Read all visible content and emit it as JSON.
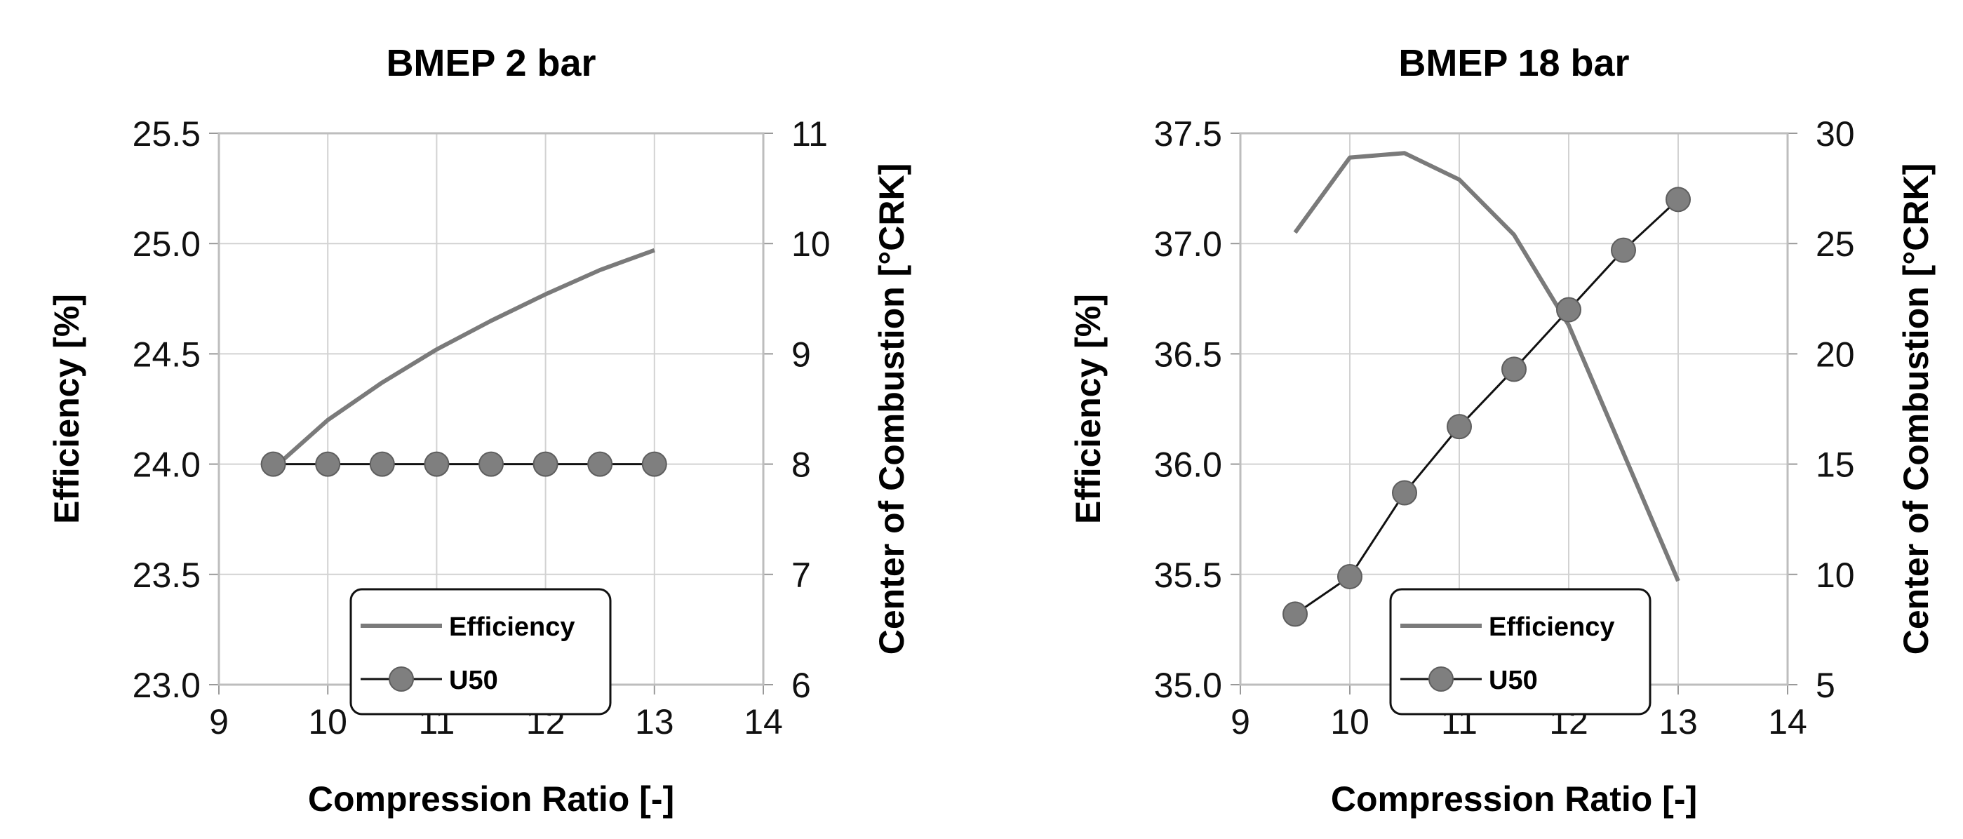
{
  "chart_data": [
    {
      "type": "line",
      "title": "BMEP 2 bar",
      "xlabel": "Compression Ratio [-]",
      "ylabel": "Efficiency [%]",
      "y2label": "Center of Combustion [°CRK]",
      "xlim": [
        9,
        14
      ],
      "xticks": [
        "9",
        "10",
        "11",
        "12",
        "13",
        "14"
      ],
      "ylim": [
        23.0,
        25.5
      ],
      "yticks": [
        "23.0",
        "23.5",
        "24.0",
        "24.5",
        "25.0",
        "25.5"
      ],
      "y2lim": [
        6,
        11
      ],
      "y2ticks": [
        "6",
        "7",
        "8",
        "9",
        "10",
        "11"
      ],
      "legend": [
        "Efficiency",
        "U50"
      ],
      "series": [
        {
          "name": "Efficiency",
          "axis": "left",
          "x": [
            9.5,
            10,
            10.5,
            11,
            11.5,
            12,
            12.5,
            13
          ],
          "values": [
            23.98,
            24.2,
            24.37,
            24.52,
            24.65,
            24.77,
            24.88,
            24.97
          ]
        },
        {
          "name": "U50",
          "axis": "right",
          "x": [
            9.5,
            10,
            10.5,
            11,
            11.5,
            12,
            12.5,
            13
          ],
          "values": [
            8,
            8,
            8,
            8,
            8,
            8,
            8,
            8
          ]
        }
      ]
    },
    {
      "type": "line",
      "title": "BMEP 18 bar",
      "xlabel": "Compression Ratio [-]",
      "ylabel": "Efficiency [%]",
      "y2label": "Center of Combustion [°CRK]",
      "xlim": [
        9,
        14
      ],
      "xticks": [
        "9",
        "10",
        "11",
        "12",
        "13",
        "14"
      ],
      "ylim": [
        35.0,
        37.5
      ],
      "yticks": [
        "35.0",
        "35.5",
        "36.0",
        "36.5",
        "37.0",
        "37.5"
      ],
      "y2lim": [
        5,
        30
      ],
      "y2ticks": [
        "5",
        "10",
        "15",
        "20",
        "25",
        "30"
      ],
      "legend": [
        "Efficiency",
        "U50"
      ],
      "series": [
        {
          "name": "Efficiency",
          "axis": "left",
          "x": [
            9.5,
            10,
            10.5,
            11,
            11.5,
            12,
            12.5,
            13
          ],
          "values": [
            37.05,
            37.39,
            37.41,
            37.29,
            37.04,
            36.63,
            36.05,
            35.47
          ]
        },
        {
          "name": "U50",
          "axis": "right",
          "x": [
            9.5,
            10,
            10.5,
            11,
            11.5,
            12,
            12.5,
            13
          ],
          "values": [
            8.2,
            9.9,
            13.7,
            16.7,
            19.3,
            22.0,
            24.7,
            27.0
          ]
        }
      ]
    }
  ]
}
